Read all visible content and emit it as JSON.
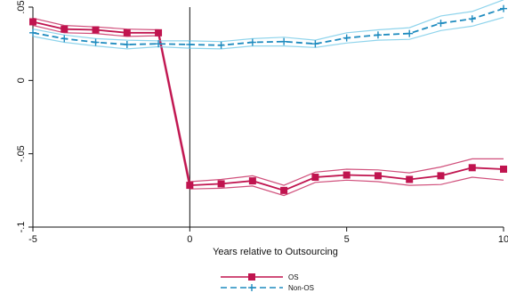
{
  "chart_data": {
    "type": "line",
    "xlabel": "Years relative to Outsourcing",
    "ylabel": "",
    "xlim": [
      -5,
      10
    ],
    "ylim": [
      -0.1,
      0.05
    ],
    "x_ticks": [
      -5,
      0,
      5,
      10
    ],
    "x_tick_labels": [
      "-5",
      "0",
      "5",
      "10"
    ],
    "y_ticks": [
      -0.1,
      -0.05,
      0,
      0.05
    ],
    "y_tick_labels": [
      "-.1",
      "-.05",
      "0",
      ".05"
    ],
    "vline_x": 0,
    "grid": false,
    "legend_position": "bottom-center",
    "series": [
      {
        "name": "OS",
        "color": "#c0144f",
        "style": "solid",
        "marker": "square",
        "x": [
          -5,
          -4,
          -3,
          -2,
          -1,
          0,
          1,
          2,
          3,
          4,
          5,
          6,
          7,
          8,
          9,
          10
        ],
        "values": [
          0.04,
          0.035,
          0.0345,
          0.0325,
          0.0325,
          -0.0715,
          -0.0705,
          -0.0685,
          -0.075,
          -0.066,
          -0.0645,
          -0.065,
          -0.0675,
          -0.065,
          -0.0595,
          -0.0605
        ],
        "ci_upper": [
          0.0425,
          0.0375,
          0.0365,
          0.035,
          0.0345,
          -0.069,
          -0.0675,
          -0.065,
          -0.0715,
          -0.0625,
          -0.0605,
          -0.061,
          -0.063,
          -0.059,
          -0.0535,
          -0.0535
        ],
        "ci_lower": [
          0.0375,
          0.0325,
          0.032,
          0.03,
          0.0305,
          -0.074,
          -0.0735,
          -0.072,
          -0.0785,
          -0.0695,
          -0.068,
          -0.069,
          -0.0715,
          -0.071,
          -0.066,
          -0.068
        ]
      },
      {
        "name": "Non-OS",
        "color": "#1e8bbf",
        "ci_color": "#6ac6e6",
        "style": "dashed",
        "marker": "plus",
        "x": [
          -5,
          -4,
          -3,
          -2,
          -1,
          0,
          1,
          2,
          3,
          4,
          5,
          6,
          7,
          8,
          9,
          10
        ],
        "values": [
          0.0325,
          0.0285,
          0.026,
          0.0245,
          0.025,
          0.0245,
          0.024,
          0.026,
          0.0265,
          0.025,
          0.029,
          0.031,
          0.032,
          0.039,
          0.042,
          0.049
        ],
        "ci_upper": [
          0.035,
          0.031,
          0.0285,
          0.0275,
          0.027,
          0.027,
          0.0265,
          0.0285,
          0.0295,
          0.0275,
          0.0325,
          0.0345,
          0.036,
          0.044,
          0.047,
          0.055
        ],
        "ci_lower": [
          0.03,
          0.026,
          0.0235,
          0.0215,
          0.023,
          0.022,
          0.0215,
          0.0235,
          0.0235,
          0.0225,
          0.0255,
          0.0275,
          0.028,
          0.034,
          0.037,
          0.043
        ]
      }
    ]
  }
}
